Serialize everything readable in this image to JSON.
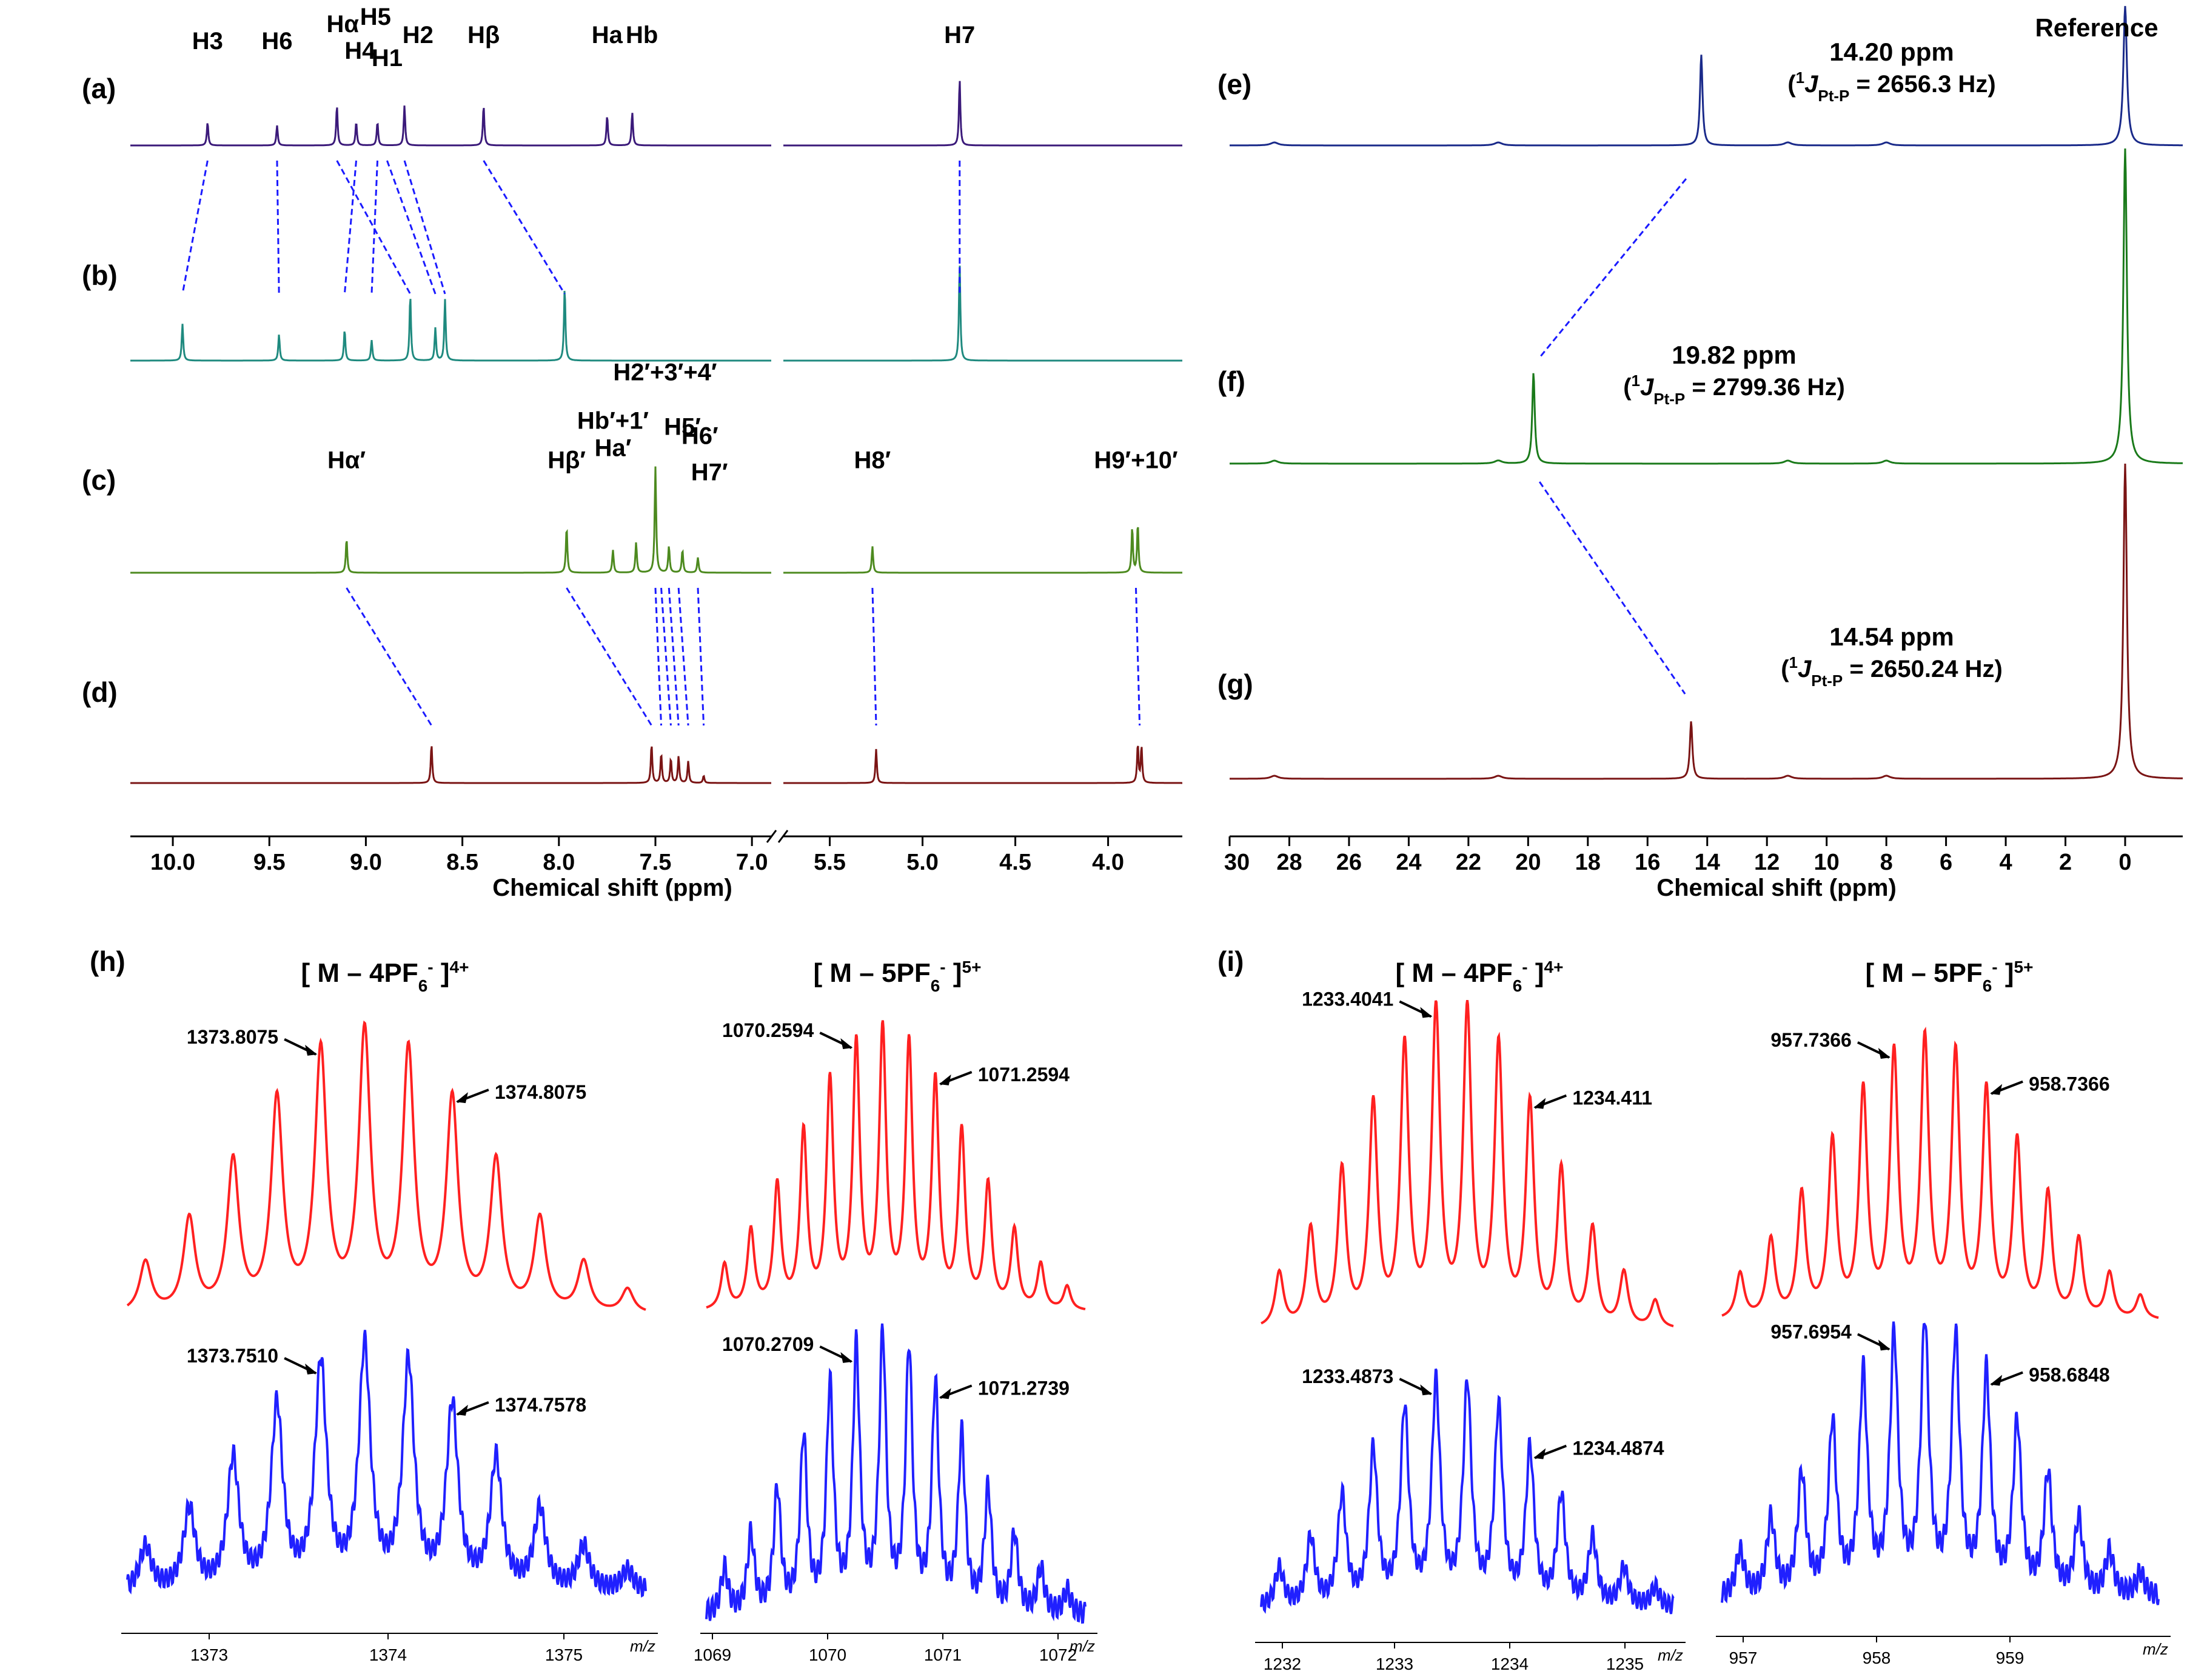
{
  "colors": {
    "a": "#3b1a7a",
    "b": "#1f8a7f",
    "c": "#4d8a1f",
    "d": "#7a1414",
    "e": "#1a2a8a",
    "f": "#1a7a1a",
    "g": "#7a1414",
    "calc": "#ff2020",
    "exp": "#2020ff",
    "connector": "#1a1aff"
  },
  "panels": {
    "a": "(a)",
    "b": "(b)",
    "c": "(c)",
    "d": "(d)",
    "e": "(e)",
    "f": "(f)",
    "g": "(g)",
    "h": "(h)",
    "i": "(i)"
  },
  "chart_data": [
    {
      "type": "line",
      "kind": "1H NMR stack",
      "xlabel": "Chemical shift (ppm)",
      "axis_break": [
        5.8,
        7.0
      ],
      "ticks": [
        10.0,
        9.5,
        9.0,
        8.5,
        8.0,
        7.5,
        7.0,
        5.5,
        5.0,
        4.5,
        4.0
      ],
      "tick_labels": [
        "10.0",
        "9.5",
        "9.0",
        "8.5",
        "8.0",
        "7.5",
        "7.0",
        "5.5",
        "5.0",
        "4.5",
        "4.0"
      ],
      "spectra": [
        {
          "panel": "a",
          "peaks": [
            {
              "ppm": 9.82,
              "h": 0.35
            },
            {
              "ppm": 9.46,
              "h": 0.3
            },
            {
              "ppm": 9.15,
              "h": 0.6
            },
            {
              "ppm": 9.05,
              "h": 0.35
            },
            {
              "ppm": 8.94,
              "h": 0.35
            },
            {
              "ppm": 8.8,
              "h": 0.6
            },
            {
              "ppm": 8.39,
              "h": 0.6
            },
            {
              "ppm": 7.75,
              "h": 0.45
            },
            {
              "ppm": 7.62,
              "h": 0.5
            },
            {
              "ppm": 4.8,
              "h": 1.0
            }
          ],
          "labels": [
            {
              "t": "H3",
              "ppm": 9.82,
              "dy": 0
            },
            {
              "t": "H6",
              "ppm": 9.46,
              "dy": 0
            },
            {
              "t": "Hα",
              "ppm": 9.12,
              "dy": -28
            },
            {
              "t": "H4",
              "ppm": 9.03,
              "dy": 16
            },
            {
              "t": "H5",
              "ppm": 8.95,
              "dy": -40
            },
            {
              "t": "H1",
              "ppm": 8.89,
              "dy": 28
            },
            {
              "t": "H2",
              "ppm": 8.73,
              "dy": -10
            },
            {
              "t": "Hβ",
              "ppm": 8.39,
              "dy": -10
            },
            {
              "t": "Ha",
              "ppm": 7.75,
              "dy": -10
            },
            {
              "t": "Hb",
              "ppm": 7.57,
              "dy": -10
            },
            {
              "t": "H7",
              "ppm": 4.8,
              "dy": -10
            }
          ]
        },
        {
          "panel": "b",
          "peaks": [
            {
              "ppm": 9.95,
              "h": 0.45
            },
            {
              "ppm": 9.45,
              "h": 0.32
            },
            {
              "ppm": 9.11,
              "h": 0.38
            },
            {
              "ppm": 8.97,
              "h": 0.25
            },
            {
              "ppm": 8.77,
              "h": 0.8
            },
            {
              "ppm": 8.64,
              "h": 0.4
            },
            {
              "ppm": 8.59,
              "h": 0.75
            },
            {
              "ppm": 7.97,
              "h": 0.9
            },
            {
              "ppm": 4.8,
              "h": 1.2
            }
          ]
        },
        {
          "panel": "c",
          "peaks": [
            {
              "ppm": 9.1,
              "h": 0.45
            },
            {
              "ppm": 7.96,
              "h": 0.6
            },
            {
              "ppm": 7.72,
              "h": 0.3
            },
            {
              "ppm": 7.6,
              "h": 0.4
            },
            {
              "ppm": 7.5,
              "h": 1.4
            },
            {
              "ppm": 7.43,
              "h": 0.35
            },
            {
              "ppm": 7.36,
              "h": 0.3
            },
            {
              "ppm": 7.28,
              "h": 0.2
            },
            {
              "ppm": 5.27,
              "h": 0.35
            },
            {
              "ppm": 3.87,
              "h": 0.6
            },
            {
              "ppm": 3.84,
              "h": 0.65
            }
          ],
          "labels": [
            {
              "t": "Hα′",
              "ppm": 9.1,
              "dy": 0
            },
            {
              "t": "Hβ′",
              "ppm": 7.96,
              "dy": 0
            },
            {
              "t": "Hb′+1′",
              "ppm": 7.72,
              "dy": -65
            },
            {
              "t": "Ha′",
              "ppm": 7.72,
              "dy": -20
            },
            {
              "t": "H2′+3′+4′",
              "ppm": 7.45,
              "dy": -145
            },
            {
              "t": "H5′",
              "ppm": 7.36,
              "dy": -55
            },
            {
              "t": "H6′",
              "ppm": 7.27,
              "dy": -40
            },
            {
              "t": "H7′",
              "ppm": 7.22,
              "dy": 20
            },
            {
              "t": "H8′",
              "ppm": 5.27,
              "dy": 0
            },
            {
              "t": "H9′+10′",
              "ppm": 3.85,
              "dy": 0
            }
          ]
        },
        {
          "panel": "d",
          "peaks": [
            {
              "ppm": 8.66,
              "h": 0.8
            },
            {
              "ppm": 7.52,
              "h": 0.8
            },
            {
              "ppm": 7.47,
              "h": 0.6
            },
            {
              "ppm": 7.42,
              "h": 0.5
            },
            {
              "ppm": 7.38,
              "h": 0.55
            },
            {
              "ppm": 7.33,
              "h": 0.45
            },
            {
              "ppm": 7.25,
              "h": 0.15
            },
            {
              "ppm": 5.25,
              "h": 0.7
            },
            {
              "ppm": 3.84,
              "h": 0.8
            },
            {
              "ppm": 3.82,
              "h": 0.75
            }
          ]
        }
      ],
      "connectors": [
        {
          "from": "a",
          "to": "b",
          "pairs": [
            [
              9.82,
              9.95
            ],
            [
              9.46,
              9.45
            ],
            [
              9.05,
              9.11
            ],
            [
              9.15,
              8.77
            ],
            [
              8.94,
              8.97
            ],
            [
              8.89,
              8.64
            ],
            [
              8.8,
              8.59
            ],
            [
              8.39,
              7.97
            ],
            [
              4.8,
              4.8
            ]
          ]
        },
        {
          "from": "c",
          "to": "d",
          "pairs": [
            [
              9.1,
              8.66
            ],
            [
              7.96,
              7.52
            ],
            [
              7.5,
              7.47
            ],
            [
              7.47,
              7.42
            ],
            [
              7.43,
              7.38
            ],
            [
              7.38,
              7.33
            ],
            [
              7.28,
              7.25
            ],
            [
              5.27,
              5.25
            ],
            [
              3.85,
              3.83
            ]
          ]
        }
      ]
    },
    {
      "type": "line",
      "kind": "31P NMR stack",
      "xlabel": "Chemical shift (ppm)",
      "ticks": [
        30,
        28,
        26,
        24,
        22,
        20,
        18,
        16,
        14,
        12,
        10,
        8,
        6,
        4,
        2,
        0
      ],
      "tick_labels": [
        "30",
        "28",
        "26",
        "24",
        "22",
        "20",
        "18",
        "16",
        "14",
        "12",
        "10",
        "8",
        "6",
        "4",
        "2",
        "0"
      ],
      "reference_label": "Reference",
      "spectra": [
        {
          "panel": "e",
          "shift": "14.20 ppm",
          "coupling": "= 2656.3 Hz)",
          "peak": 14.2
        },
        {
          "panel": "f",
          "shift": "19.82 ppm",
          "coupling": "= 2799.36 Hz)",
          "peak": 19.82
        },
        {
          "panel": "g",
          "shift": "14.54 ppm",
          "coupling": "= 2650.24 Hz)",
          "peak": 14.54
        }
      ],
      "coupling_prefix": "(",
      "coupling_sup": "1",
      "coupling_J": "J",
      "coupling_sub": "Pt-P"
    },
    {
      "type": "line",
      "kind": "HR-ESI-MS isotope patterns",
      "xunit": "m/z",
      "groups": [
        {
          "panel": "h",
          "title": "[ M – 4PF",
          "charge": "4+",
          "ions": "6",
          "sup": "-",
          "xticks": [
            "1373",
            "1374",
            "1375"
          ],
          "calc_annot": [
            "1373.8075",
            "1374.8075"
          ],
          "exp_annot": [
            "1373.7510",
            "1374.7578"
          ],
          "peaks": 12
        },
        {
          "panel": "h",
          "title": "[ M – 5PF",
          "charge": "5+",
          "ions": "6",
          "sup": "-",
          "xticks": [
            "1069",
            "1070",
            "1071",
            "1072"
          ],
          "calc_annot": [
            "1070.2594",
            "1071.2594"
          ],
          "exp_annot": [
            "1070.2709",
            "1071.2739"
          ],
          "peaks": 14
        },
        {
          "panel": "i",
          "title": "[ M – 4PF",
          "charge": "4+",
          "ions": "6",
          "sup": "-",
          "xticks": [
            "1232",
            "1233",
            "1234",
            "1235"
          ],
          "calc_annot": [
            "1233.4041",
            "1234.411"
          ],
          "exp_annot": [
            "1233.4873",
            "1234.4874"
          ],
          "peaks": 13
        },
        {
          "panel": "i",
          "title": "[ M – 5PF",
          "charge": "5+",
          "ions": "6",
          "sup": "-",
          "xticks": [
            "957",
            "958",
            "959"
          ],
          "calc_annot": [
            "957.7366",
            "958.7366"
          ],
          "exp_annot": [
            "957.6954",
            "958.6848"
          ],
          "peaks": 14
        }
      ]
    }
  ]
}
